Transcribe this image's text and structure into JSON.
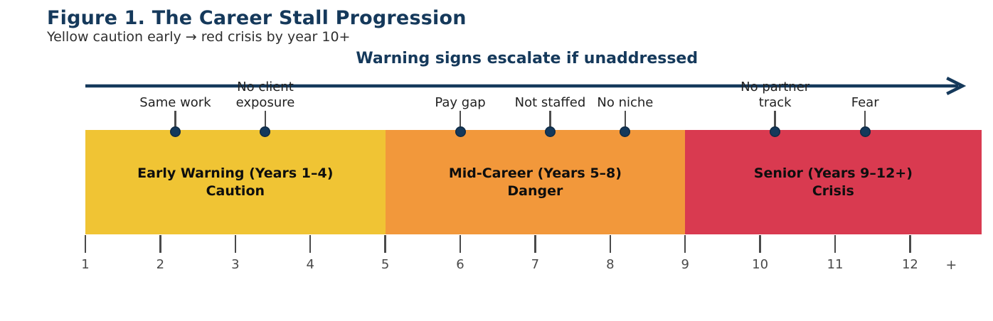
{
  "figure": {
    "title": "Figure 1. The Career Stall Progression",
    "subtitle": "Yellow caution early → red crisis by year 10+"
  },
  "chart_data": {
    "type": "timeline",
    "title": "Warning signs escalate if unaddressed",
    "x_axis": {
      "ticks": [
        "1",
        "2",
        "3",
        "4",
        "5",
        "6",
        "7",
        "8",
        "9",
        "10",
        "11",
        "12"
      ],
      "tick_years": [
        1,
        2,
        3,
        4,
        5,
        6,
        7,
        8,
        9,
        10,
        11,
        12
      ],
      "overflow_label": "+",
      "overflow_label_year": 12.55,
      "range": [
        1,
        12.95
      ],
      "grid": false
    },
    "phases": [
      {
        "name": "early-warning",
        "label": "Early Warning (Years 1–4)",
        "sublabel": "Caution",
        "start_year": 1,
        "end_year": 5,
        "color": "#F0C434"
      },
      {
        "name": "mid-career",
        "label": "Mid-Career (Years 5–8)",
        "sublabel": "Danger",
        "start_year": 5,
        "end_year": 9,
        "color": "#F2983B"
      },
      {
        "name": "senior",
        "label": "Senior (Years 9–12+)",
        "sublabel": "Crisis",
        "start_year": 9,
        "end_year": 12.95,
        "color": "#D93A50"
      }
    ],
    "events": [
      {
        "label_lines": [
          "Same work"
        ],
        "year": 2.2
      },
      {
        "label_lines": [
          "No client",
          "exposure"
        ],
        "year": 3.4
      },
      {
        "label_lines": [
          "Pay gap"
        ],
        "year": 6.0
      },
      {
        "label_lines": [
          "Not staffed"
        ],
        "year": 7.2
      },
      {
        "label_lines": [
          "No niche"
        ],
        "year": 8.2
      },
      {
        "label_lines": [
          "No partner",
          "track"
        ],
        "year": 10.2
      },
      {
        "label_lines": [
          "Fear"
        ],
        "year": 11.4
      }
    ],
    "arrow": {
      "start_year": 1,
      "end_year": 12.7
    },
    "legend_position": "none"
  },
  "colors": {
    "navy": "#15395B",
    "subtitle_text": "#2F2F2F",
    "band_text": "#0E0E0E",
    "event_text": "#222222",
    "axis": "#4A4A4A",
    "stem": "#4D4D4D"
  }
}
